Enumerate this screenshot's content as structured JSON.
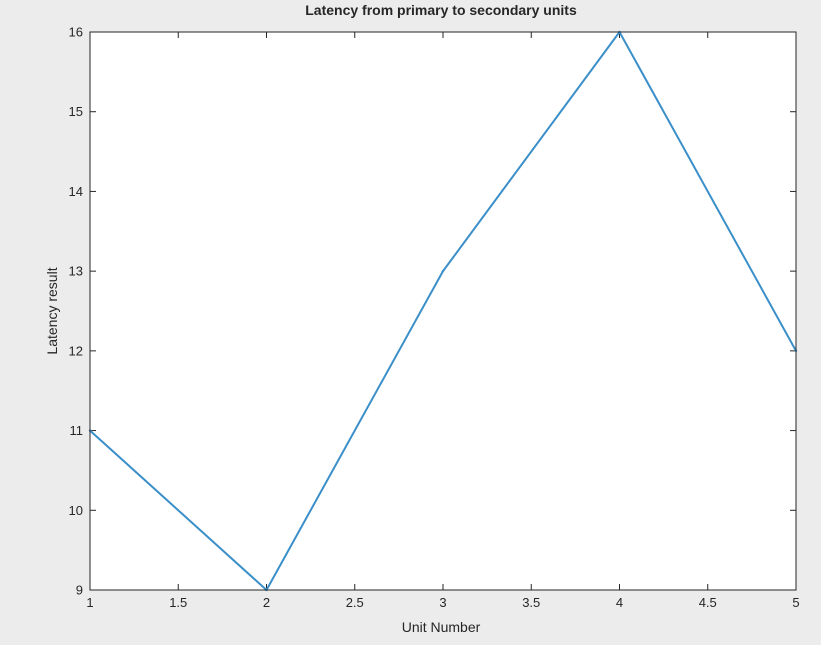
{
  "chart_data": {
    "type": "line",
    "title": "Latency from primary to secondary units",
    "xlabel": "Unit Number",
    "ylabel": "Latency result",
    "x": [
      1,
      2,
      3,
      4,
      5
    ],
    "series": [
      {
        "values": [
          11,
          9,
          13,
          16,
          12
        ]
      }
    ],
    "xlim": [
      1,
      5
    ],
    "ylim": [
      9,
      16
    ],
    "xticks": [
      1,
      1.5,
      2,
      2.5,
      3,
      3.5,
      4,
      4.5,
      5
    ],
    "xtick_labels": [
      "1",
      "1.5",
      "2",
      "2.5",
      "3",
      "3.5",
      "4",
      "4.5",
      "5"
    ],
    "yticks": [
      9,
      10,
      11,
      12,
      13,
      14,
      15,
      16
    ],
    "ytick_labels": [
      "9",
      "10",
      "11",
      "12",
      "13",
      "14",
      "15",
      "16"
    ],
    "grid": false,
    "legend": "none",
    "colors": {
      "figure_background": "#ececec",
      "axes_background": "#ffffff",
      "axis": "#262626",
      "series": "#3b8fc9"
    }
  }
}
